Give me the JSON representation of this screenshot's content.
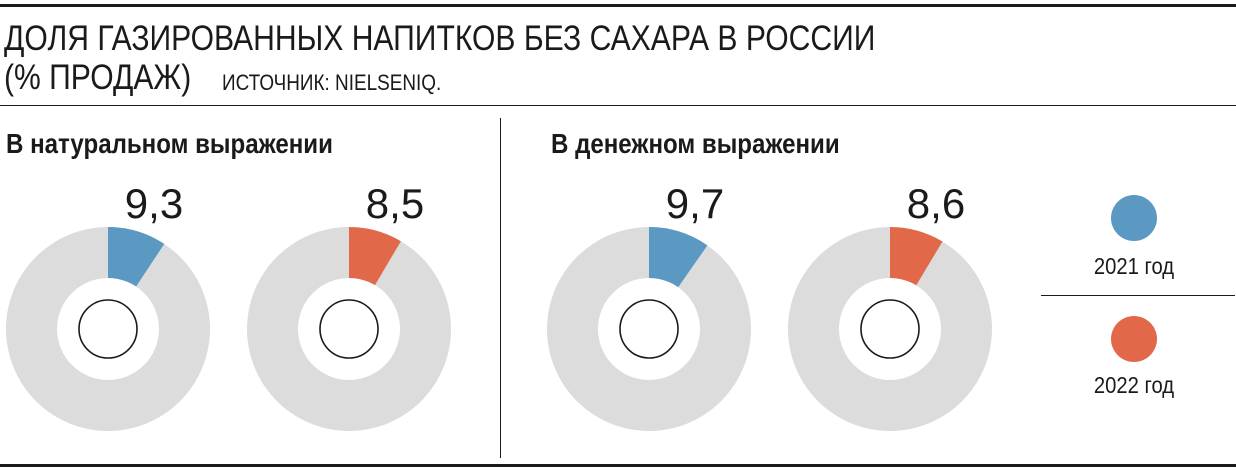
{
  "title": {
    "line1": "ДОЛЯ ГАЗИРОВАННЫХ НАПИТКОВ БЕЗ САХАРА В РОССИИ",
    "line2": "(% ПРОДАЖ)",
    "source": "ИСТОЧНИК: NIELSENIQ."
  },
  "sections": [
    {
      "title": "В натуральном выражении"
    },
    {
      "title": "В денежном выражении"
    }
  ],
  "legend": [
    {
      "label": "2021 год",
      "color": "#5b98c2"
    },
    {
      "label": "2022 год",
      "color": "#e1694a"
    }
  ],
  "colors": {
    "remainder": "#dcdcdc",
    "text": "#1a1a1a"
  },
  "chart_data": [
    {
      "type": "pie",
      "section": "В натуральном выражении",
      "series": "2021 год",
      "value": 9.3,
      "label": "9,3",
      "color": "#5b98c2"
    },
    {
      "type": "pie",
      "section": "В натуральном выражении",
      "series": "2022 год",
      "value": 8.5,
      "label": "8,5",
      "color": "#e1694a"
    },
    {
      "type": "pie",
      "section": "В денежном выражении",
      "series": "2021 год",
      "value": 9.7,
      "label": "9,7",
      "color": "#5b98c2"
    },
    {
      "type": "pie",
      "section": "В денежном выражении",
      "series": "2022 год",
      "value": 8.6,
      "label": "8,6",
      "color": "#e1694a"
    }
  ]
}
